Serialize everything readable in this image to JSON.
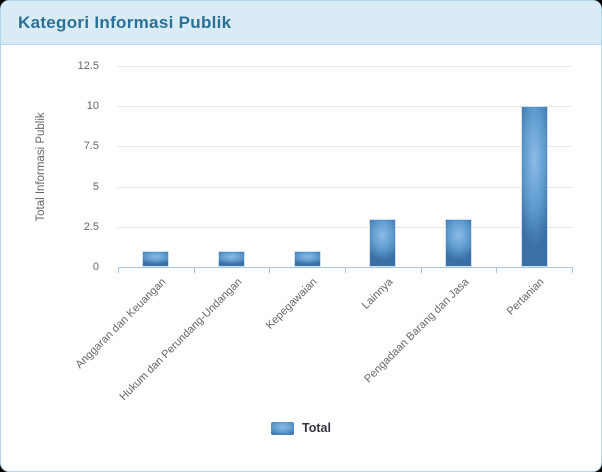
{
  "header": {
    "title": "Kategori Informasi Publik"
  },
  "chart_data": {
    "type": "bar",
    "title": "Kategori Informasi Publik",
    "categories": [
      "Anggaran dan Keuangan",
      "Hukum dan Perundang-Undangan",
      "Kepegawaian",
      "Lainnya",
      "Pengadaan Barang dan Jasa",
      "Pertanian"
    ],
    "series": [
      {
        "name": "Total",
        "values": [
          1,
          1,
          1,
          3,
          3,
          10
        ]
      }
    ],
    "xlabel": "",
    "ylabel": "Total Informasi Publik",
    "ylim": [
      0,
      12.5
    ],
    "ytick_step": 2.5,
    "yticks": [
      "0",
      "2.5",
      "5",
      "7.5",
      "10",
      "12.5"
    ],
    "grid": true,
    "legend_position": "bottom"
  },
  "colors": {
    "header_bg": "#d9ecf6",
    "header_text": "#2b7095",
    "header_border": "#b7d8e9",
    "card_border": "#b3d6e8",
    "gridline": "#e6e6e6",
    "axis_line": "#a9c7e0",
    "tick_text": "#666666",
    "legend_text": "#333740",
    "bar_mid": "#8cbce7",
    "bar_body": "#5f9bce",
    "bar_edge": "#3a70a5",
    "bar_border": "#cfe2f2"
  }
}
